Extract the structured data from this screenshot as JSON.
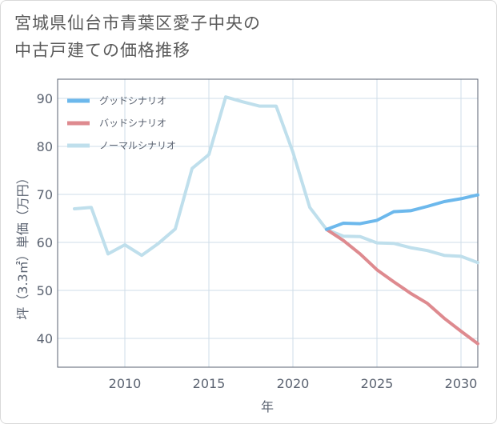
{
  "title": {
    "line1": "宮城県仙台市青葉区愛子中央の",
    "line2": "中古戸建ての価格推移"
  },
  "chart_data": {
    "type": "line",
    "xlabel": "年",
    "ylabel": "坪（3.3㎡）単価（万円）",
    "xlim": [
      2006,
      2031
    ],
    "ylim": [
      34,
      94
    ],
    "xticks": [
      2010,
      2015,
      2020,
      2025,
      2030
    ],
    "yticks": [
      40,
      50,
      60,
      70,
      80,
      90
    ],
    "grid": true,
    "legend_position": "top-left",
    "series": [
      {
        "name": "グッドシナリオ",
        "color": "#6cb8ec",
        "x": [
          2022,
          2023,
          2024,
          2025,
          2026,
          2027,
          2028,
          2029,
          2030,
          2031
        ],
        "values": [
          62.7,
          64.0,
          63.9,
          64.6,
          66.4,
          66.6,
          67.5,
          68.5,
          69.1,
          69.9
        ]
      },
      {
        "name": "バッドシナリオ",
        "color": "#de8a8f",
        "x": [
          2022,
          2023,
          2024,
          2025,
          2026,
          2027,
          2028,
          2029,
          2030,
          2031
        ],
        "values": [
          62.7,
          60.4,
          57.6,
          54.3,
          51.8,
          49.4,
          47.3,
          44.2,
          41.5,
          38.9
        ]
      },
      {
        "name": "ノーマルシナリオ",
        "color": "#bfdfec",
        "x": [
          2007,
          2008,
          2009,
          2010,
          2011,
          2012,
          2013,
          2014,
          2015,
          2016,
          2017,
          2018,
          2019,
          2020,
          2021,
          2022,
          2023,
          2024,
          2025,
          2026,
          2027,
          2028,
          2029,
          2030,
          2031
        ],
        "values": [
          67.0,
          67.3,
          57.6,
          59.5,
          57.3,
          59.8,
          62.8,
          75.4,
          78.3,
          90.3,
          89.3,
          88.4,
          88.4,
          78.8,
          67.3,
          62.7,
          61.3,
          61.2,
          59.9,
          59.8,
          58.9,
          58.3,
          57.3,
          57.1,
          55.8
        ]
      }
    ]
  }
}
